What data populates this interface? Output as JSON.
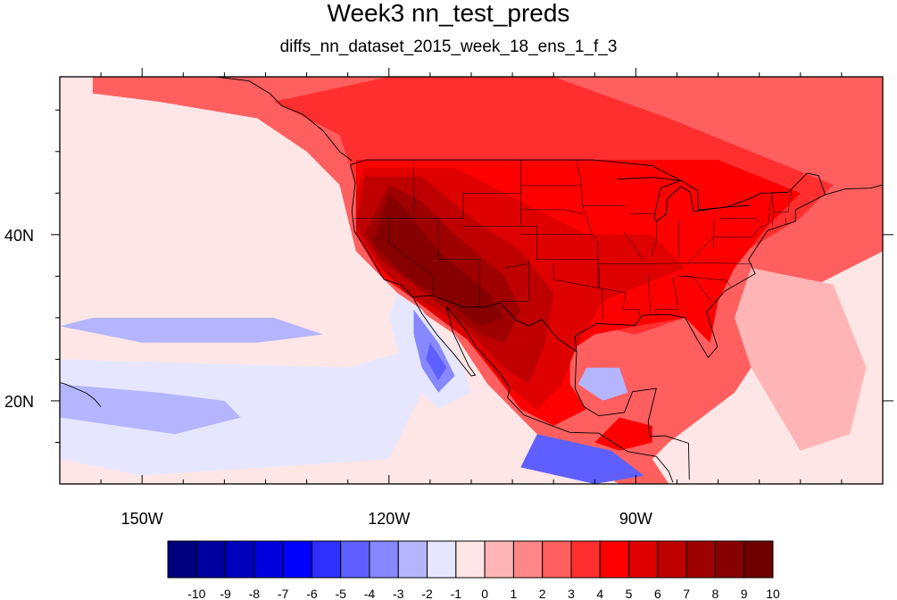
{
  "title": "Week3 nn_test_preds",
  "subtitle": "diffs_nn_dataset_2015_week_18_ens_1_f_3",
  "map": {
    "lon_range": [
      -160,
      -60
    ],
    "lat_range": [
      10,
      59
    ],
    "x_ticks": [
      {
        "lon": -150,
        "label": "150W"
      },
      {
        "lon": -120,
        "label": "120W"
      },
      {
        "lon": -90,
        "label": "90W"
      }
    ],
    "y_ticks": [
      {
        "lat": 40,
        "label": "40N"
      },
      {
        "lat": 20,
        "label": "20N"
      }
    ]
  },
  "colorbar": {
    "levels": [
      "-10",
      "-9",
      "-8",
      "-7",
      "-6",
      "-5",
      "-4",
      "-3",
      "-2",
      "-1",
      "0",
      "1",
      "2",
      "3",
      "4",
      "5",
      "6",
      "7",
      "8",
      "9",
      "10"
    ],
    "colors": [
      "#00007f",
      "#00009f",
      "#0000bf",
      "#0000df",
      "#0000ff",
      "#2f2fff",
      "#5f5fff",
      "#8787ff",
      "#b5b5ff",
      "#e6e6ff",
      "#ffe6e6",
      "#ffb5b5",
      "#ff8787",
      "#ff5f5f",
      "#ff2f2f",
      "#ff0000",
      "#df0000",
      "#bf0000",
      "#9f0000",
      "#870000",
      "#6f0000"
    ]
  },
  "chart_data": {
    "type": "heatmap",
    "title": "Week3 nn_test_preds",
    "subtitle": "diffs_nn_dataset_2015_week_18_ens_1_f_3",
    "xlabel": "",
    "ylabel": "",
    "xlim": [
      -160,
      -60
    ],
    "ylim": [
      10,
      59
    ],
    "color_levels": [
      -10,
      -9,
      -8,
      -7,
      -6,
      -5,
      -4,
      -3,
      -2,
      -1,
      0,
      1,
      2,
      3,
      4,
      5,
      6,
      7,
      8,
      9,
      10
    ],
    "background_value": -0.5,
    "regions": [
      {
        "value": 2.5,
        "points": [
          [
            -156,
            59
          ],
          [
            -60,
            59
          ],
          [
            -60,
            38
          ],
          [
            -68,
            34
          ],
          [
            -72,
            31
          ],
          [
            -74,
            26
          ],
          [
            -76,
            24
          ],
          [
            -78,
            21
          ],
          [
            -82,
            18
          ],
          [
            -86,
            15
          ],
          [
            -88,
            13
          ],
          [
            -86,
            10
          ],
          [
            -92,
            10
          ],
          [
            -100,
            14
          ],
          [
            -104,
            18
          ],
          [
            -108,
            22
          ],
          [
            -112,
            28
          ],
          [
            -118,
            32
          ],
          [
            -121,
            35
          ],
          [
            -124,
            38
          ],
          [
            -125,
            42
          ],
          [
            -126,
            46
          ],
          [
            -130,
            50
          ],
          [
            -136,
            54
          ],
          [
            -148,
            56
          ],
          [
            -156,
            57
          ]
        ]
      },
      {
        "value": 3.5,
        "points": [
          [
            -134,
            56
          ],
          [
            -120,
            59
          ],
          [
            -100,
            59
          ],
          [
            -86,
            54
          ],
          [
            -76,
            50
          ],
          [
            -66,
            46
          ],
          [
            -70,
            42
          ],
          [
            -80,
            36
          ],
          [
            -84,
            30
          ],
          [
            -90,
            28
          ],
          [
            -100,
            30
          ],
          [
            -108,
            28
          ],
          [
            -112,
            30
          ],
          [
            -118,
            33
          ],
          [
            -121,
            36
          ],
          [
            -124,
            40
          ],
          [
            -124,
            46
          ],
          [
            -126,
            52
          ]
        ]
      },
      {
        "value": 4.5,
        "points": [
          [
            -124,
            49
          ],
          [
            -80,
            49
          ],
          [
            -70,
            45
          ],
          [
            -74,
            41
          ],
          [
            -78,
            36
          ],
          [
            -80,
            32
          ],
          [
            -81,
            27
          ],
          [
            -84,
            30
          ],
          [
            -90,
            29
          ],
          [
            -95,
            28
          ],
          [
            -98,
            26
          ],
          [
            -98,
            22
          ],
          [
            -96,
            19
          ],
          [
            -100,
            17
          ],
          [
            -104,
            19
          ],
          [
            -107,
            23
          ],
          [
            -111,
            28
          ],
          [
            -115,
            31
          ],
          [
            -118,
            33
          ],
          [
            -121,
            35
          ],
          [
            -124,
            40
          ]
        ]
      },
      {
        "value": 4.5,
        "points": [
          [
            -92,
            18
          ],
          [
            -88,
            17
          ],
          [
            -88,
            15
          ],
          [
            -92,
            14
          ],
          [
            -95,
            15
          ]
        ]
      },
      {
        "value": 5.5,
        "points": [
          [
            -123,
            48
          ],
          [
            -112,
            48
          ],
          [
            -104,
            44
          ],
          [
            -96,
            40
          ],
          [
            -88,
            40
          ],
          [
            -84,
            36
          ],
          [
            -94,
            32
          ],
          [
            -97,
            27
          ],
          [
            -99,
            22
          ],
          [
            -102,
            19
          ],
          [
            -106,
            22
          ],
          [
            -110,
            27
          ],
          [
            -114,
            30
          ],
          [
            -118,
            33
          ],
          [
            -121,
            36
          ],
          [
            -124,
            40
          ],
          [
            -124,
            45
          ]
        ]
      },
      {
        "value": 6.5,
        "points": [
          [
            -123,
            47
          ],
          [
            -116,
            47
          ],
          [
            -110,
            42
          ],
          [
            -104,
            38
          ],
          [
            -100,
            33
          ],
          [
            -101,
            27
          ],
          [
            -103,
            22
          ],
          [
            -106,
            24
          ],
          [
            -110,
            28
          ],
          [
            -114,
            31
          ],
          [
            -118,
            33
          ],
          [
            -121,
            36
          ],
          [
            -124,
            41
          ]
        ]
      },
      {
        "value": 7.5,
        "points": [
          [
            -120,
            46
          ],
          [
            -116,
            44
          ],
          [
            -112,
            40
          ],
          [
            -106,
            35
          ],
          [
            -104,
            31
          ],
          [
            -106,
            27
          ],
          [
            -109,
            28
          ],
          [
            -113,
            31
          ],
          [
            -117,
            34
          ],
          [
            -121,
            37
          ],
          [
            -123,
            40
          ]
        ]
      },
      {
        "value": 8.5,
        "points": [
          [
            -120,
            45
          ],
          [
            -118,
            43
          ],
          [
            -114,
            38
          ],
          [
            -108,
            33
          ],
          [
            -106,
            30
          ],
          [
            -109,
            29
          ],
          [
            -113,
            32
          ],
          [
            -118,
            35
          ],
          [
            -122,
            39
          ]
        ]
      },
      {
        "value": -1.5,
        "points": [
          [
            -160,
            25
          ],
          [
            -125,
            24
          ],
          [
            -118,
            26
          ],
          [
            -116,
            21
          ],
          [
            -120,
            13
          ],
          [
            -150,
            11
          ],
          [
            -160,
            13
          ]
        ]
      },
      {
        "value": -2.5,
        "points": [
          [
            -160,
            22
          ],
          [
            -148,
            21
          ],
          [
            -140,
            20
          ],
          [
            -138,
            18
          ],
          [
            -146,
            16
          ],
          [
            -160,
            18
          ]
        ]
      },
      {
        "value": -2.5,
        "points": [
          [
            -156,
            30
          ],
          [
            -134,
            30
          ],
          [
            -128,
            28
          ],
          [
            -136,
            27
          ],
          [
            -150,
            27
          ],
          [
            -160,
            29
          ]
        ]
      },
      {
        "value": -1.5,
        "points": [
          [
            -119,
            33
          ],
          [
            -116,
            31
          ],
          [
            -111,
            24
          ],
          [
            -110,
            21
          ],
          [
            -114,
            19
          ],
          [
            -118,
            23
          ],
          [
            -120,
            30
          ]
        ]
      },
      {
        "value": -3.5,
        "points": [
          [
            -117,
            31
          ],
          [
            -114,
            27
          ],
          [
            -112,
            23
          ],
          [
            -114,
            21
          ],
          [
            -116,
            24
          ],
          [
            -117,
            28
          ]
        ]
      },
      {
        "value": -4.5,
        "points": [
          [
            -115,
            27
          ],
          [
            -113,
            24
          ],
          [
            -114,
            22.5
          ],
          [
            -115.5,
            25
          ]
        ]
      },
      {
        "value": -2.5,
        "points": [
          [
            -96,
            24
          ],
          [
            -92,
            24
          ],
          [
            -91,
            21
          ],
          [
            -94,
            20
          ],
          [
            -97,
            22
          ]
        ]
      },
      {
        "value": -4.5,
        "points": [
          [
            -102,
            16
          ],
          [
            -93,
            14
          ],
          [
            -89,
            11
          ],
          [
            -95,
            10
          ],
          [
            -104,
            12
          ]
        ]
      },
      {
        "value": 0.5,
        "points": [
          [
            -76,
            36
          ],
          [
            -66,
            34
          ],
          [
            -62,
            24
          ],
          [
            -64,
            16
          ],
          [
            -70,
            14
          ],
          [
            -76,
            24
          ],
          [
            -78,
            30
          ]
        ]
      }
    ],
    "note": ""
  }
}
